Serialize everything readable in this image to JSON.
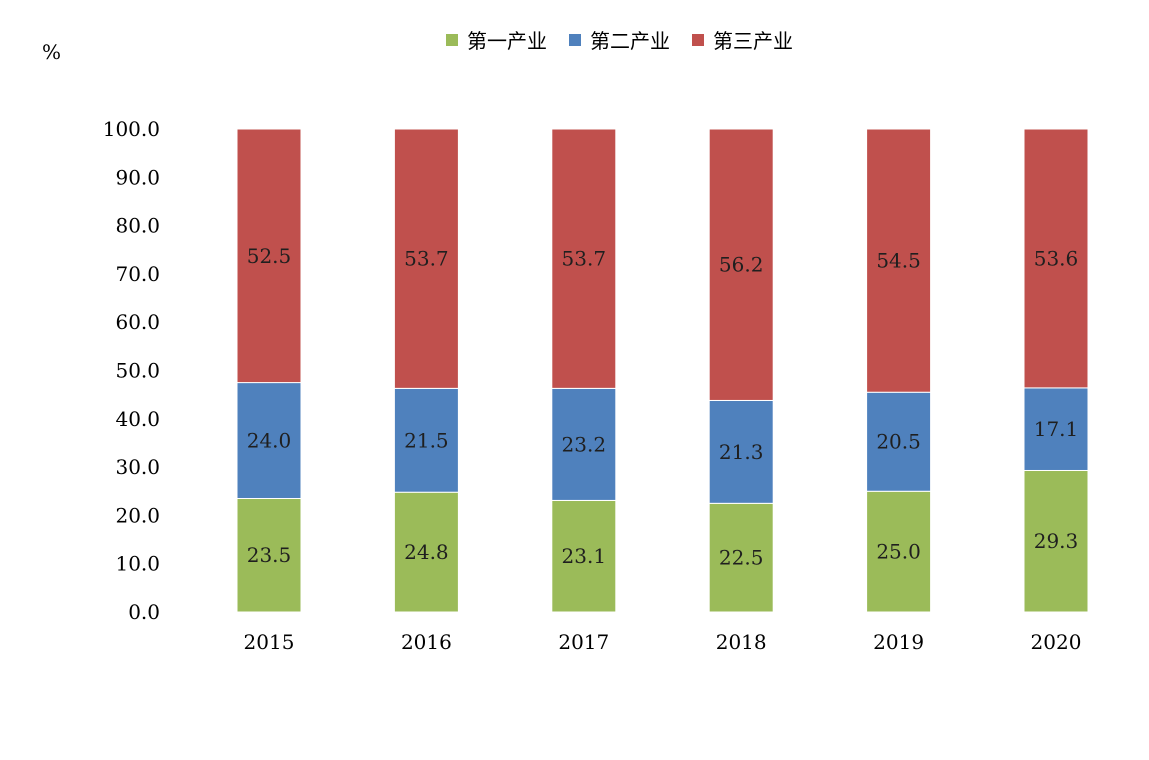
{
  "chart_data": {
    "type": "bar",
    "stacked": true,
    "percent_stacked": true,
    "unit": "%",
    "categories": [
      "2015",
      "2016",
      "2017",
      "2018",
      "2019",
      "2020"
    ],
    "series": [
      {
        "name": "第一产业",
        "color": "#9BBB59",
        "values": [
          23.5,
          24.8,
          23.1,
          22.5,
          25.0,
          29.3
        ]
      },
      {
        "name": "第二产业",
        "color": "#4F81BD",
        "values": [
          24.0,
          21.5,
          23.2,
          21.3,
          20.5,
          17.1
        ]
      },
      {
        "name": "第三产业",
        "color": "#C0504D",
        "values": [
          52.5,
          53.7,
          53.7,
          56.2,
          54.5,
          53.6
        ]
      }
    ],
    "y_ticks": [
      "0.0",
      "10.0",
      "20.0",
      "30.0",
      "40.0",
      "50.0",
      "60.0",
      "70.0",
      "80.0",
      "90.0",
      "100.0"
    ],
    "ylim": [
      0,
      100
    ],
    "grid": false,
    "legend_position": "top"
  }
}
